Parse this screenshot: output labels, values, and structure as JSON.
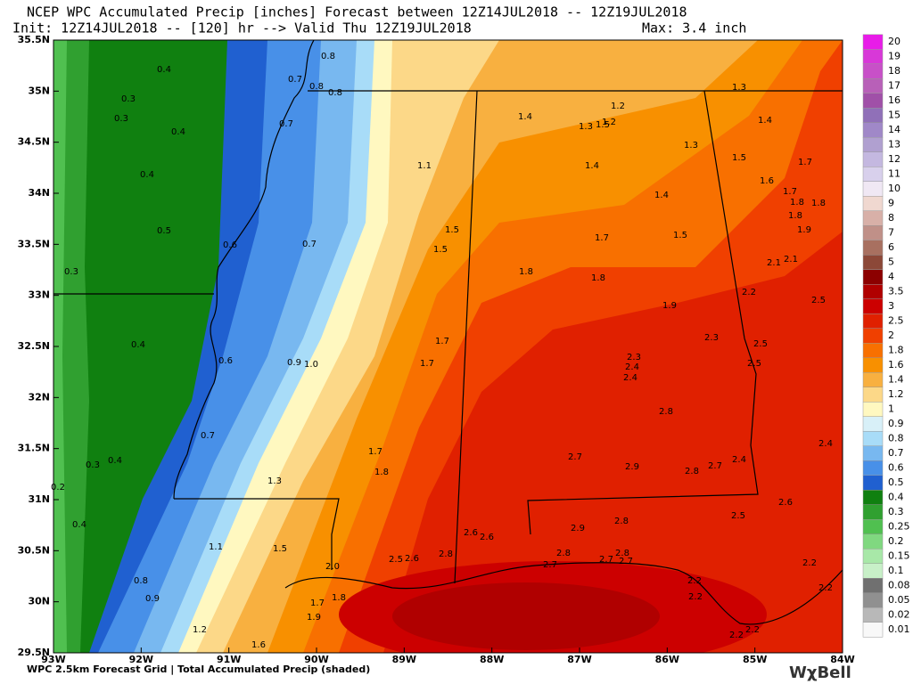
{
  "header": {
    "line1": "NCEP WPC Accumulated Precip [inches] Forecast between 12Z14JUL2018 -- 12Z19JUL2018",
    "line2": "Init: 12Z14JUL2018 -- [120] hr --> Valid Thu 12Z19JUL2018",
    "max": "Max: 3.4 inch"
  },
  "map": {
    "lat_labels": [
      "35.5N",
      "35N",
      "34.5N",
      "34N",
      "33.5N",
      "33N",
      "32.5N",
      "32N",
      "31.5N",
      "31N",
      "30.5N",
      "30N",
      "29.5N"
    ],
    "lon_labels": [
      "93W",
      "92W",
      "91W",
      "90W",
      "89W",
      "88W",
      "87W",
      "86W",
      "85W",
      "84W"
    ],
    "point_labels": [
      "0.4",
      "0.3",
      "0.3",
      "0.4",
      "0.4",
      "0.5",
      "0.3",
      "0.4",
      "0.8",
      "0.7",
      "0.8",
      "0.8",
      "0.7",
      "0.6",
      "0.7",
      "0.6",
      "0.9",
      "1.0",
      "0.7",
      "0.3",
      "0.4",
      "0.2",
      "0.4",
      "0.8",
      "0.9",
      "1.1",
      "1.5",
      "1.5",
      "1.7",
      "1.7",
      "1.7",
      "1.8",
      "1.3",
      "1.1",
      "1.5",
      "2.0",
      "1.2",
      "1.6",
      "1.9",
      "1.7",
      "1.8",
      "1.2",
      "1.4",
      "1.3",
      "1.5",
      "1.2",
      "1.3",
      "1.4",
      "1.3",
      "1.4",
      "1.4",
      "1.5",
      "1.7",
      "1.6",
      "1.7",
      "1.8",
      "1.8",
      "1.8",
      "1.9",
      "1.7",
      "1.5",
      "1.8",
      "1.8",
      "2.1",
      "2.1",
      "2.2",
      "2.5",
      "1.9",
      "2.3",
      "2.5",
      "2.5",
      "2.3",
      "2.4",
      "2.4",
      "2.8",
      "2.7",
      "2.9",
      "2.8",
      "2.7",
      "2.4",
      "2.4",
      "2.6",
      "2.5",
      "2.8",
      "2.9",
      "2.6",
      "2.6",
      "2.8",
      "2.5",
      "2.6",
      "2.8",
      "2.7",
      "2.8",
      "2.7",
      "2.7",
      "2.2",
      "2.2",
      "2.2",
      "2.2",
      "2.2",
      "2.2"
    ]
  },
  "colorbar": [
    {
      "label": "20",
      "color": "#e81ce8"
    },
    {
      "label": "19",
      "color": "#d838d8"
    },
    {
      "label": "18",
      "color": "#c850c8"
    },
    {
      "label": "17",
      "color": "#b860b8"
    },
    {
      "label": "16",
      "color": "#a050a8"
    },
    {
      "label": "15",
      "color": "#9070b8"
    },
    {
      "label": "14",
      "color": "#a088c8"
    },
    {
      "label": "13",
      "color": "#b0a0d0"
    },
    {
      "label": "12",
      "color": "#c4b8e0"
    },
    {
      "label": "11",
      "color": "#d8d0ec"
    },
    {
      "label": "10",
      "color": "#f0e8f4"
    },
    {
      "label": "9",
      "color": "#f0d8d0"
    },
    {
      "label": "8",
      "color": "#d8b0a8"
    },
    {
      "label": "7",
      "color": "#c09088"
    },
    {
      "label": "6",
      "color": "#a87060"
    },
    {
      "label": "5",
      "color": "#8c4838"
    },
    {
      "label": "4",
      "color": "#8c0000"
    },
    {
      "label": "3.5",
      "color": "#b00000"
    },
    {
      "label": "3",
      "color": "#cc0000"
    },
    {
      "label": "2.5",
      "color": "#e02000"
    },
    {
      "label": "2",
      "color": "#f04000"
    },
    {
      "label": "1.8",
      "color": "#f87000"
    },
    {
      "label": "1.6",
      "color": "#f89000"
    },
    {
      "label": "1.4",
      "color": "#f8b040"
    },
    {
      "label": "1.2",
      "color": "#fcd888"
    },
    {
      "label": "1",
      "color": "#fff8c0"
    },
    {
      "label": "0.9",
      "color": "#d8f0f8"
    },
    {
      "label": "0.8",
      "color": "#a8dcf8"
    },
    {
      "label": "0.7",
      "color": "#78b8f0"
    },
    {
      "label": "0.6",
      "color": "#4890e8"
    },
    {
      "label": "0.5",
      "color": "#2060d0"
    },
    {
      "label": "0.4",
      "color": "#108010"
    },
    {
      "label": "0.3",
      "color": "#30a030"
    },
    {
      "label": "0.25",
      "color": "#50c050"
    },
    {
      "label": "0.2",
      "color": "#80d880"
    },
    {
      "label": "0.15",
      "color": "#a8e8a8"
    },
    {
      "label": "0.1",
      "color": "#c8f0c8"
    },
    {
      "label": "0.08",
      "color": "#707070"
    },
    {
      "label": "0.05",
      "color": "#909090"
    },
    {
      "label": "0.02",
      "color": "#b8b8b8"
    },
    {
      "label": "0.01",
      "color": "#f8f8f8"
    }
  ],
  "footer": {
    "left": "WPC 2.5km Forecast Grid | Total Accumulated Precip (shaded)",
    "brand": "WχBell"
  }
}
